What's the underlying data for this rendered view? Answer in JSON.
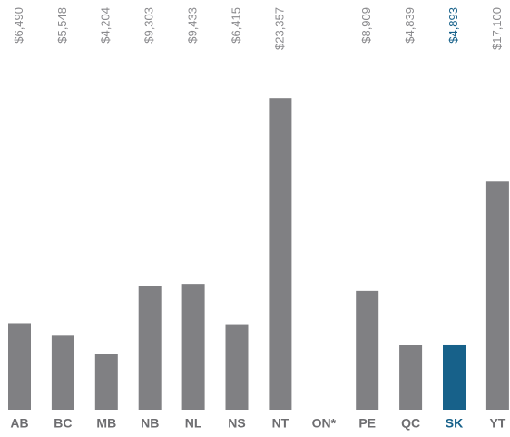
{
  "chart_data": {
    "type": "bar",
    "categories": [
      "AB",
      "BC",
      "MB",
      "NB",
      "NL",
      "NS",
      "NT",
      "ON*",
      "PE",
      "QC",
      "SK",
      "YT"
    ],
    "values": [
      6490,
      5548,
      4204,
      9303,
      9433,
      6415,
      23357,
      null,
      8909,
      4839,
      4893,
      17100
    ],
    "value_labels": [
      "$6,490",
      "$5,548",
      "$4,204",
      "$9,303",
      "$9,433",
      "$6,415",
      "$23,357",
      null,
      "$8,909",
      "$4,839",
      "$4,893",
      "$17,100"
    ],
    "colors": [
      "#808083",
      "#808083",
      "#808083",
      "#808083",
      "#808083",
      "#808083",
      "#808083",
      "#808083",
      "#808083",
      "#808083",
      "#17618a",
      "#808083"
    ],
    "ylim": [
      0,
      25000
    ]
  }
}
